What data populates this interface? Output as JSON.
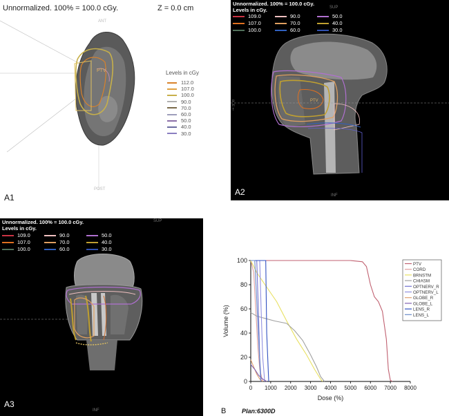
{
  "panel_a1": {
    "header": "Unnormalized.  100% = 100.0 cGy.",
    "z_label": "Z = 0.0 cm",
    "top_label": "ANT",
    "bottom_label": "POST",
    "legend_title": "Levels in cGy",
    "levels": [
      {
        "label": "112.0",
        "color": "#d9822b"
      },
      {
        "label": "107.0",
        "color": "#e0a040"
      },
      {
        "label": "100.0",
        "color": "#c7b04a"
      },
      {
        "label": "90.0",
        "color": "#b0b0b0"
      },
      {
        "label": "70.0",
        "color": "#7a6a4a"
      },
      {
        "label": "60.0",
        "color": "#9d9dbb"
      },
      {
        "label": "50.0",
        "color": "#8b6fa8"
      },
      {
        "label": "40.0",
        "color": "#6a6aa0"
      },
      {
        "label": "30.0",
        "color": "#8a7ec0"
      }
    ],
    "panel_label": "A1"
  },
  "panel_a2": {
    "header_line1": "Unnormalized.  100% = 100.0 cGy.",
    "header_line2": "Levels in cGy.",
    "levels": [
      {
        "label": "109.0",
        "color": "#cc3344"
      },
      {
        "label": "90.0",
        "color": "#f0c0c0"
      },
      {
        "label": "50.0",
        "color": "#b070d0"
      },
      {
        "label": "107.0",
        "color": "#e07020"
      },
      {
        "label": "70.0",
        "color": "#e0a060"
      },
      {
        "label": "40.0",
        "color": "#c0a030"
      },
      {
        "label": "100.0",
        "color": "#50705a"
      },
      {
        "label": "60.0",
        "color": "#3060c0"
      },
      {
        "label": "30.0",
        "color": "#3050b0"
      }
    ],
    "top_label": "SUP",
    "bottom_label": "INF",
    "side_left": "R\nH\nT",
    "panel_label": "A2"
  },
  "panel_a3": {
    "header_line1": "Unnormalized.  100% = 100.0 cGy.",
    "header_line2": "Levels in cGy.",
    "levels": [
      {
        "label": "109.0",
        "color": "#cc3344"
      },
      {
        "label": "90.0",
        "color": "#f0c0c0"
      },
      {
        "label": "50.0",
        "color": "#b070d0"
      },
      {
        "label": "107.0",
        "color": "#e07020"
      },
      {
        "label": "70.0",
        "color": "#e0a060"
      },
      {
        "label": "40.0",
        "color": "#c0a030"
      },
      {
        "label": "100.0",
        "color": "#50705a"
      },
      {
        "label": "60.0",
        "color": "#3060c0"
      },
      {
        "label": "30.0",
        "color": "#3050b0"
      }
    ],
    "top_label": "SUP",
    "bottom_label": "INF",
    "panel_label": "A3"
  },
  "panel_b": {
    "panel_label": "B",
    "plan_label": "Plan:6300D"
  },
  "chart_data": {
    "type": "line",
    "title": "",
    "xlabel": "Dose (%)",
    "ylabel": "Volume (%)",
    "xlim": [
      0,
      8000
    ],
    "ylim": [
      0,
      100
    ],
    "xticks": [
      0,
      1000,
      2000,
      3000,
      4000,
      5000,
      6000,
      7000,
      8000
    ],
    "yticks": [
      0,
      20,
      40,
      60,
      80,
      100
    ],
    "grid": false,
    "legend_position": "right",
    "series": [
      {
        "name": "PTV",
        "color": "#c06070",
        "x": [
          0,
          5000,
          5600,
          5800,
          6000,
          6200,
          6400,
          6600,
          6800,
          6900,
          7000,
          7100
        ],
        "y": [
          100,
          100,
          99,
          95,
          80,
          70,
          66,
          58,
          35,
          10,
          1,
          0
        ]
      },
      {
        "name": "CORD",
        "color": "#e0a0a0",
        "x": [
          0,
          150,
          250,
          350,
          450,
          600
        ],
        "y": [
          100,
          90,
          60,
          30,
          10,
          0
        ]
      },
      {
        "name": "BRNSTM",
        "color": "#e8e060",
        "x": [
          0,
          300,
          800,
          1300,
          1800,
          2300,
          2800,
          3200,
          3500,
          3600
        ],
        "y": [
          100,
          90,
          78,
          66,
          50,
          35,
          22,
          10,
          2,
          0
        ]
      },
      {
        "name": "CHIASM",
        "color": "#a0a0a0",
        "x": [
          0,
          300,
          1200,
          1800,
          2200,
          2600,
          3000,
          3300,
          3500,
          3700
        ],
        "y": [
          57,
          54,
          50,
          48,
          42,
          34,
          22,
          12,
          4,
          0
        ]
      },
      {
        "name": "OPTNERV_R",
        "color": "#7070d0",
        "x": [
          0,
          300,
          380,
          450,
          520
        ],
        "y": [
          100,
          100,
          60,
          20,
          0
        ]
      },
      {
        "name": "OPTNERV_L",
        "color": "#9090e0",
        "x": [
          0,
          450,
          520,
          600,
          700
        ],
        "y": [
          100,
          100,
          60,
          20,
          0
        ]
      },
      {
        "name": "GLOBE_R",
        "color": "#e0a070",
        "x": [
          0,
          150,
          300,
          450,
          600
        ],
        "y": [
          18,
          12,
          6,
          2,
          0
        ]
      },
      {
        "name": "GLOBE_L",
        "color": "#8060b0",
        "x": [
          0,
          200,
          400,
          600,
          800
        ],
        "y": [
          14,
          10,
          5,
          2,
          0
        ]
      },
      {
        "name": "LENS_R",
        "color": "#3050c0",
        "x": [
          0,
          750,
          800,
          900
        ],
        "y": [
          100,
          100,
          40,
          0
        ]
      },
      {
        "name": "LENS_L",
        "color": "#6a8ac8",
        "x": [
          0,
          200,
          350,
          500
        ],
        "y": [
          100,
          100,
          50,
          0
        ]
      }
    ]
  }
}
